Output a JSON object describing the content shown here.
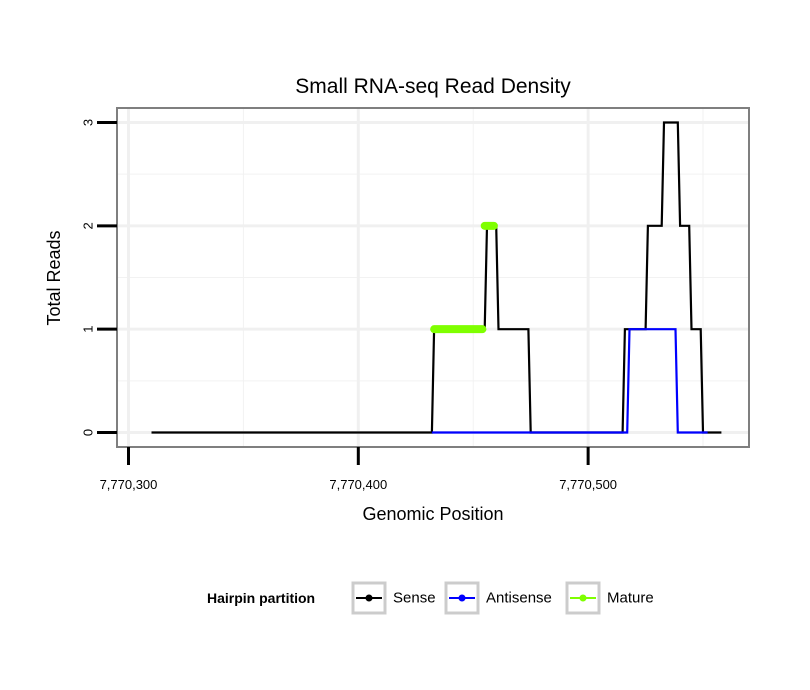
{
  "chart_data": {
    "type": "line",
    "title": "Small RNA-seq Read Density",
    "xlabel": "Genomic Position",
    "ylabel": "Total Reads",
    "xlim": [
      7770295,
      7770570
    ],
    "ylim": [
      -0.14,
      3.14
    ],
    "x_ticks": [
      7770300,
      7770400,
      7770500
    ],
    "x_tick_labels": [
      "7,770,300",
      "7,770,400",
      "7,770,500"
    ],
    "y_ticks": [
      0,
      1,
      2,
      3
    ],
    "y_tick_labels": [
      "0",
      "1",
      "2",
      "3"
    ],
    "grid": true,
    "legend": {
      "title": "Hairpin partition",
      "position": "bottom",
      "entries": [
        {
          "label": "Sense",
          "color": "#000000"
        },
        {
          "label": "Antisense",
          "color": "#0000ff"
        },
        {
          "label": "Mature",
          "color": "#7fff00"
        }
      ]
    },
    "series": [
      {
        "name": "Sense",
        "color": "#000000",
        "points": [
          [
            7770310,
            0
          ],
          [
            7770432,
            0
          ],
          [
            7770433,
            1
          ],
          [
            7770455,
            1
          ],
          [
            7770456,
            2
          ],
          [
            7770460,
            2
          ],
          [
            7770461,
            1
          ],
          [
            7770474,
            1
          ],
          [
            7770475,
            0
          ],
          [
            7770515,
            0
          ],
          [
            7770516,
            1
          ],
          [
            7770525,
            1
          ],
          [
            7770526,
            2
          ],
          [
            7770532,
            2
          ],
          [
            7770533,
            3
          ],
          [
            7770539,
            3
          ],
          [
            7770540,
            2
          ],
          [
            7770544,
            2
          ],
          [
            7770545,
            1
          ],
          [
            7770549,
            1
          ],
          [
            7770550,
            0
          ],
          [
            7770558,
            0
          ]
        ]
      },
      {
        "name": "Antisense",
        "color": "#0000ff",
        "points": [
          [
            7770432,
            0
          ],
          [
            7770517,
            0
          ],
          [
            7770518,
            1
          ],
          [
            7770538,
            1
          ],
          [
            7770539,
            0
          ],
          [
            7770552,
            0
          ]
        ]
      },
      {
        "name": "Mature",
        "color": "#7fff00",
        "segments": [
          [
            [
              7770433,
              1
            ],
            [
              7770454,
              1
            ]
          ],
          [
            [
              7770455,
              2
            ],
            [
              7770459,
              2
            ]
          ]
        ]
      }
    ]
  }
}
